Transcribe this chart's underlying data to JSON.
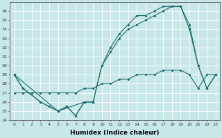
{
  "xlabel": "Humidex (Indice chaleur)",
  "xlim": [
    -0.5,
    23.5
  ],
  "ylim": [
    24,
    37
  ],
  "yticks": [
    24,
    25,
    26,
    27,
    28,
    29,
    30,
    31,
    32,
    33,
    34,
    35,
    36
  ],
  "xticks": [
    0,
    1,
    2,
    3,
    4,
    5,
    6,
    7,
    8,
    9,
    10,
    11,
    12,
    13,
    14,
    15,
    16,
    17,
    18,
    19,
    20,
    21,
    22,
    23
  ],
  "background_color": "#c8e8e8",
  "grid_color": "#ffffff",
  "line_color": "#1a6b6b",
  "line1_x": [
    0,
    1,
    3,
    4,
    5,
    6,
    7,
    8,
    9
  ],
  "line1_y": [
    29,
    27.5,
    26,
    25.5,
    25,
    25.5,
    24.5,
    26,
    26
  ],
  "line2_x": [
    0,
    1,
    3,
    4,
    5,
    6,
    7,
    8,
    9,
    10,
    11,
    12,
    13,
    14,
    15,
    16,
    17,
    18,
    19,
    20,
    21,
    22,
    23
  ],
  "line2_y": [
    29,
    27.5,
    26,
    25.5,
    25,
    25.5,
    24.5,
    26,
    26,
    30,
    32,
    33.5,
    34.5,
    35.5,
    35.5,
    36,
    36.5,
    36.5,
    36.5,
    34,
    30,
    27.5,
    29
  ],
  "line3_x": [
    0,
    5,
    8,
    9,
    10,
    11,
    12,
    13,
    14,
    15,
    16,
    17,
    18,
    19,
    20,
    21,
    22,
    23
  ],
  "line3_y": [
    29,
    25,
    26,
    26,
    30,
    31.5,
    33,
    34,
    34.5,
    35,
    35.5,
    36,
    36.5,
    36.5,
    34.5,
    30,
    27.5,
    29
  ],
  "line4_x": [
    0,
    1,
    2,
    3,
    4,
    5,
    6,
    7,
    8,
    9,
    10,
    11,
    12,
    13,
    14,
    15,
    16,
    17,
    18,
    19,
    20,
    21,
    22,
    23
  ],
  "line4_y": [
    27,
    27,
    27,
    27,
    27,
    27,
    27,
    27,
    27.5,
    27.5,
    28,
    28,
    28.5,
    28.5,
    29,
    29,
    29,
    29.5,
    29.5,
    29.5,
    29,
    27.5,
    29,
    29
  ]
}
